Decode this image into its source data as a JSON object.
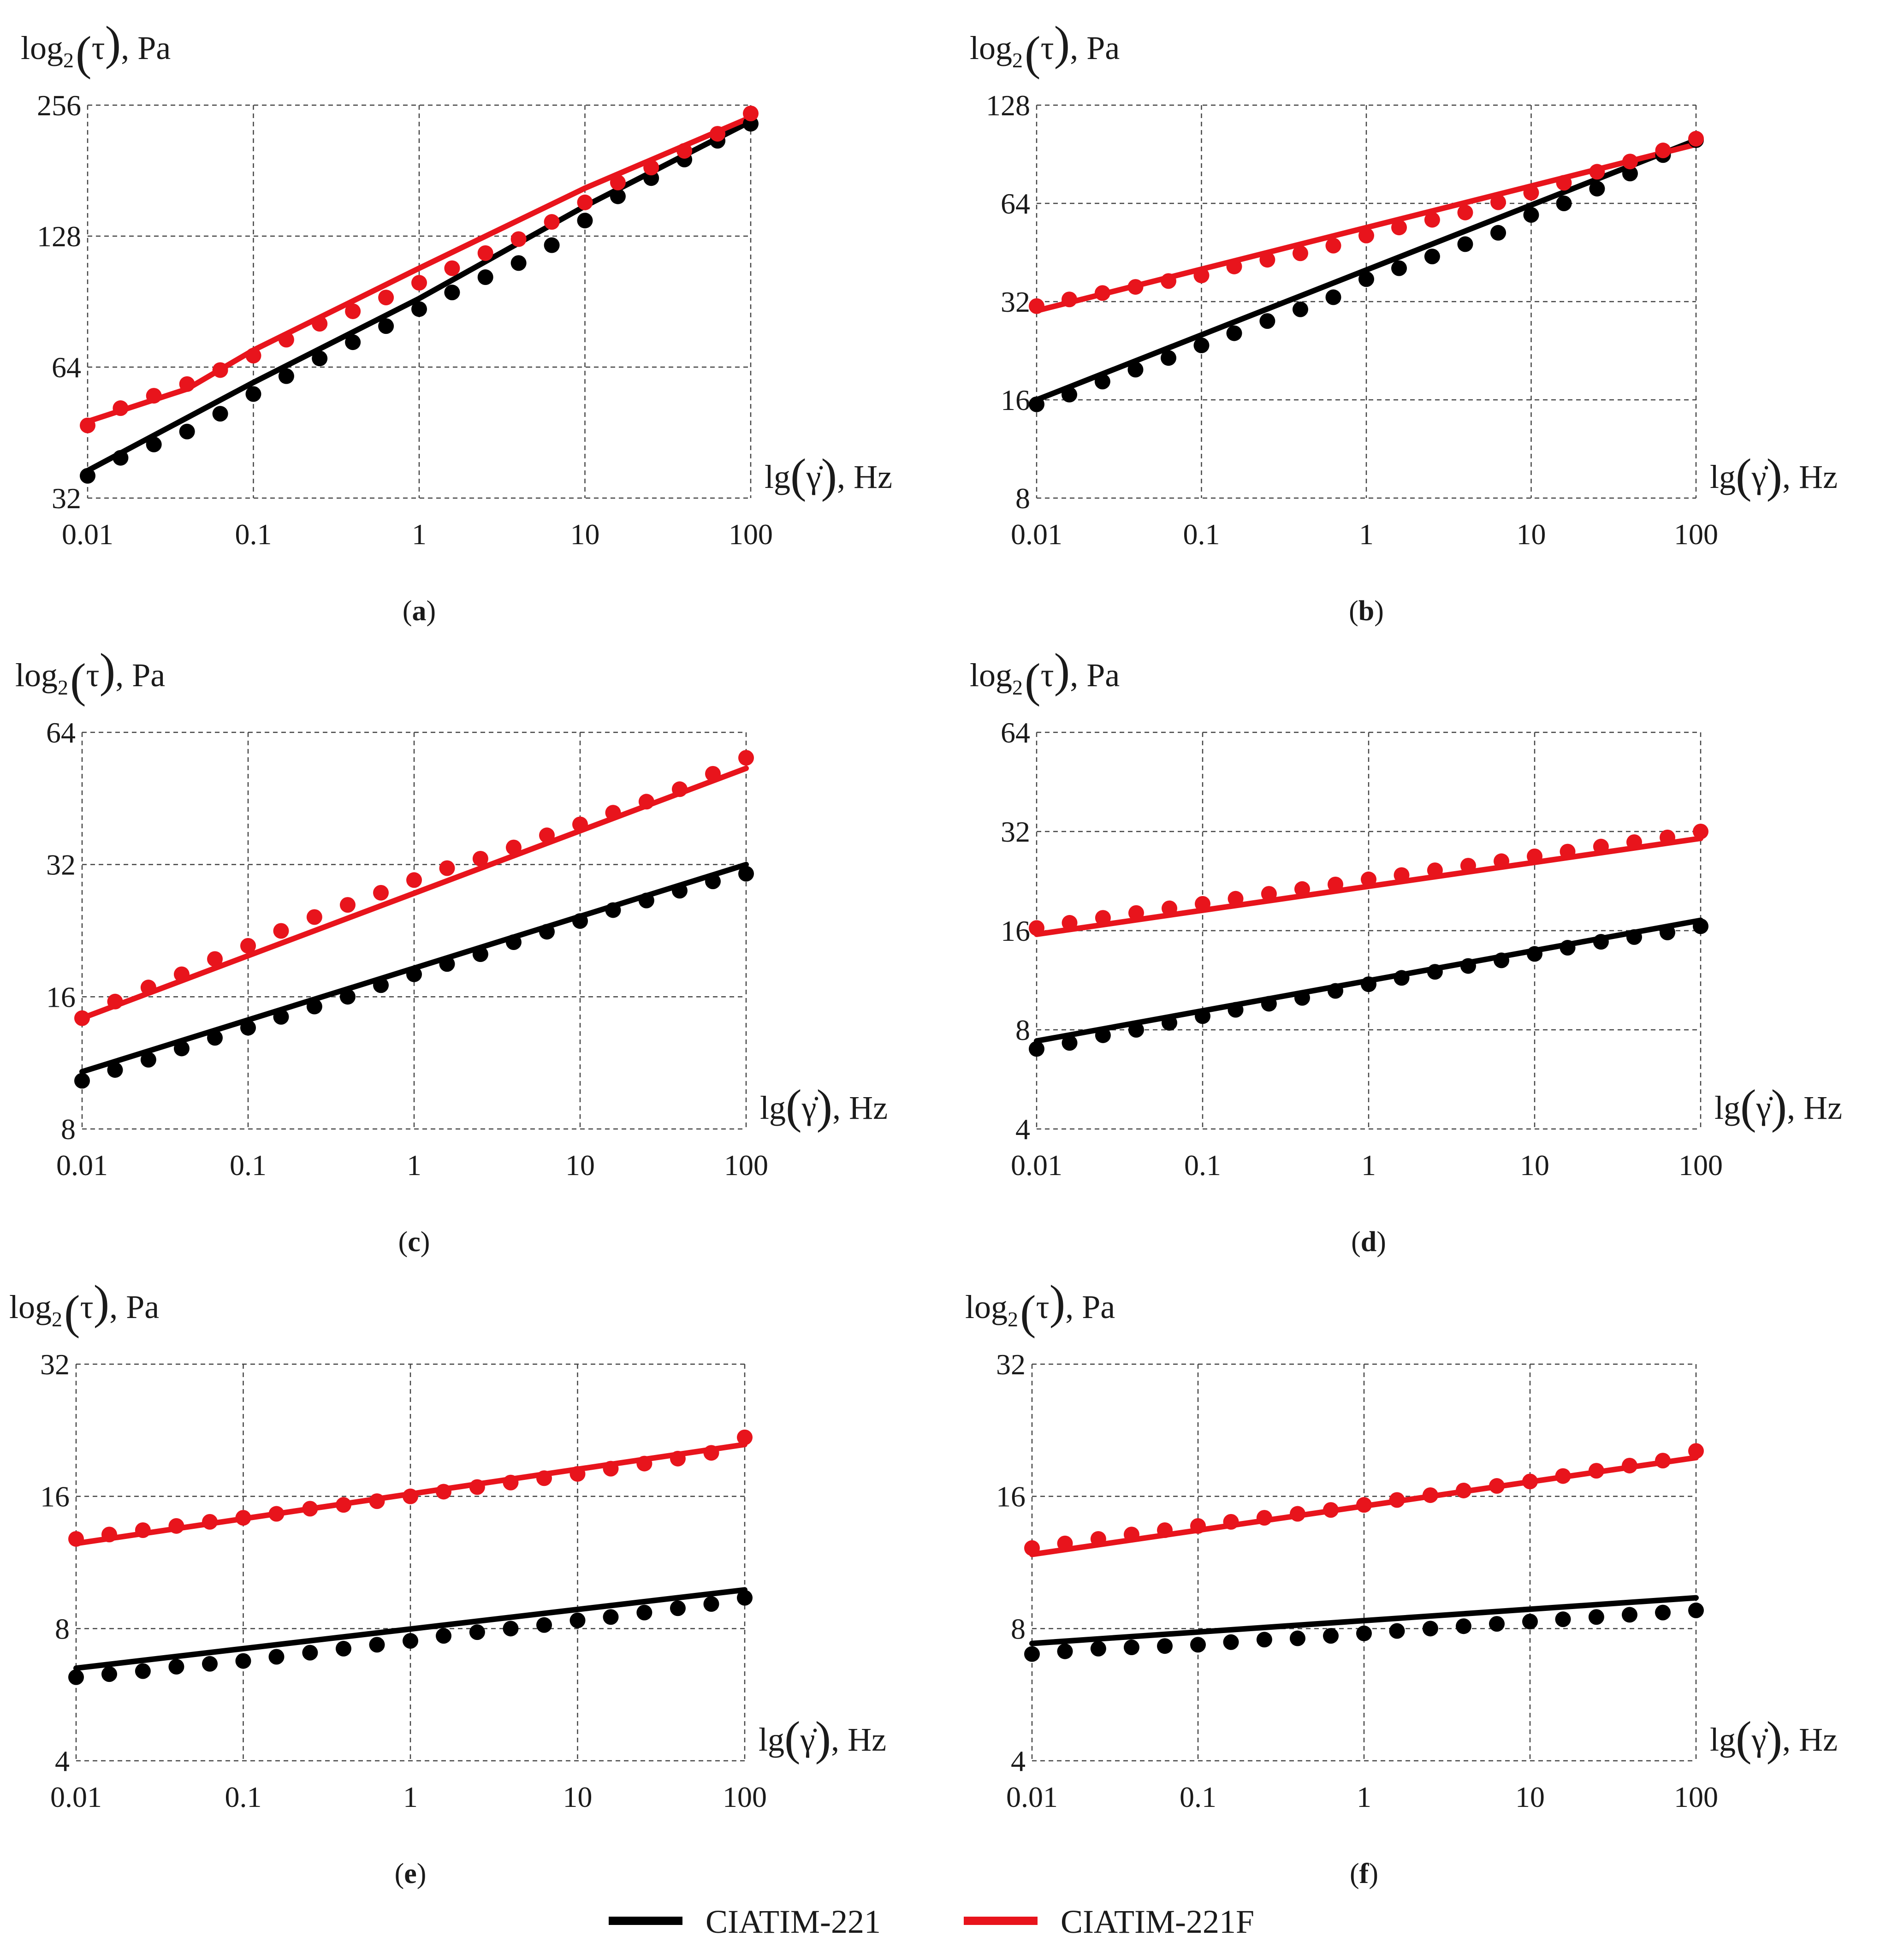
{
  "colors": {
    "series1": "#000000",
    "series2": "#e8141c",
    "grid": "#444444",
    "text": "#1a1a1a"
  },
  "legend": [
    {
      "name": "CIATIM-221",
      "color": "#000000"
    },
    {
      "name": "CIATIM-221F",
      "color": "#e8141c"
    }
  ],
  "chart_data": [
    {
      "type": "line",
      "label": "a",
      "ylabel": {
        "main": "log",
        "sub": "2",
        "arg": "τ",
        "unit": ", Pa"
      },
      "xlabel": {
        "main": "lg",
        "arg": "γ̇",
        "unit": ", Hz"
      },
      "xscale": "log10",
      "yscale": "log2",
      "xlim": [
        0.01,
        100
      ],
      "ylim": [
        32,
        256
      ],
      "xticks": [
        0.01,
        0.1,
        1,
        10,
        100
      ],
      "xticklabels": [
        "0.01",
        "0.1",
        "1",
        "10",
        "100"
      ],
      "yticks": [
        32,
        64,
        128,
        256
      ],
      "yticklabels": [
        "32",
        "64",
        "128",
        "256"
      ],
      "series": [
        {
          "name": "CIATIM-221",
          "color": "#000000",
          "line": {
            "x": [
              0.01,
              0.1,
              1,
              10,
              100
            ],
            "y": [
              37,
              59,
              92,
              150,
              235
            ]
          },
          "points": {
            "x": [
              0.01,
              0.0158,
              0.0251,
              0.0398,
              0.0631,
              0.1,
              0.158,
              0.251,
              0.398,
              0.631,
              1,
              1.58,
              2.51,
              3.98,
              6.31,
              10,
              15.8,
              25.1,
              39.8,
              63.1,
              100
            ],
            "y": [
              36,
              39.6,
              42.5,
              45.5,
              50,
              55.5,
              61,
              67,
              73,
              79.5,
              87,
              95,
              103,
              111,
              122,
              139,
              158,
              174,
              192,
              212,
              232
            ]
          }
        },
        {
          "name": "CIATIM-221F",
          "color": "#e8141c",
          "line": {
            "x": [
              0.01,
              0.0398,
              0.1,
              1,
              10,
              100
            ],
            "y": [
              48,
              57,
              70,
              108,
              165,
              240
            ]
          },
          "points": {
            "x": [
              0.01,
              0.0158,
              0.0251,
              0.0398,
              0.0631,
              0.1,
              0.158,
              0.251,
              0.398,
              0.631,
              1,
              1.58,
              2.51,
              3.98,
              6.31,
              10,
              15.8,
              25.1,
              39.8,
              63.1,
              100
            ],
            "y": [
              47,
              51.5,
              55,
              58.5,
              63,
              68,
              74,
              80.5,
              86,
              92.5,
              100,
              108,
              117,
              126,
              138,
              153,
              170,
              184,
              201,
              220,
              245
            ]
          }
        }
      ]
    },
    {
      "type": "line",
      "label": "b",
      "ylabel": {
        "main": "log",
        "sub": "2",
        "arg": "τ",
        "unit": ", Pa"
      },
      "xlabel": {
        "main": "lg",
        "arg": "γ̇",
        "unit": ", Hz"
      },
      "xscale": "log10",
      "yscale": "log2",
      "xlim": [
        0.01,
        100
      ],
      "ylim": [
        8,
        128
      ],
      "xticks": [
        0.01,
        0.1,
        1,
        10,
        100
      ],
      "xticklabels": [
        "0.01",
        "0.1",
        "1",
        "10",
        "100"
      ],
      "yticks": [
        8,
        16,
        32,
        64,
        128
      ],
      "yticklabels": [
        "8",
        "16",
        "32",
        "64",
        "128"
      ],
      "series": [
        {
          "name": "CIATIM-221",
          "color": "#000000",
          "line": {
            "x": [
              0.01,
              100
            ],
            "y": [
              16,
              100
            ]
          },
          "points": {
            "x": [
              0.01,
              0.0158,
              0.0251,
              0.0398,
              0.0631,
              0.1,
              0.158,
              0.251,
              0.398,
              0.631,
              1,
              1.58,
              2.51,
              3.98,
              6.31,
              10,
              15.8,
              25.1,
              39.8,
              63.1,
              100
            ],
            "y": [
              15.5,
              16.6,
              18.2,
              19.8,
              21.5,
              23.5,
              25.6,
              27.9,
              30.3,
              33,
              37.5,
              40.5,
              44,
              48,
              52,
              59,
              64,
              71,
              79,
              90,
              100
            ]
          }
        },
        {
          "name": "CIATIM-221F",
          "color": "#e8141c",
          "line": {
            "x": [
              0.01,
              100
            ],
            "y": [
              30,
              97
            ]
          },
          "points": {
            "x": [
              0.01,
              0.0158,
              0.0251,
              0.0398,
              0.0631,
              0.1,
              0.158,
              0.251,
              0.398,
              0.631,
              1,
              1.58,
              2.51,
              3.98,
              6.31,
              10,
              15.8,
              25.1,
              39.8,
              63.1,
              100
            ],
            "y": [
              31,
              32.5,
              34,
              35.5,
              37,
              38.5,
              41,
              43,
              45,
              47.5,
              51,
              54,
              57,
              60,
              64.5,
              69,
              74,
              80,
              86,
              93,
              101
            ]
          }
        }
      ]
    },
    {
      "type": "line",
      "label": "c",
      "ylabel": {
        "main": "log",
        "sub": "2",
        "arg": "τ",
        "unit": ", Pa"
      },
      "xlabel": {
        "main": "lg",
        "arg": "γ̇",
        "unit": ", Hz"
      },
      "xscale": "log10",
      "yscale": "log2",
      "xlim": [
        0.01,
        100
      ],
      "ylim": [
        8,
        64
      ],
      "xticks": [
        0.01,
        0.1,
        1,
        10,
        100
      ],
      "xticklabels": [
        "0.01",
        "0.1",
        "1",
        "10",
        "100"
      ],
      "yticks": [
        8,
        16,
        32,
        64
      ],
      "yticklabels": [
        "8",
        "16",
        "32",
        "64"
      ],
      "series": [
        {
          "name": "CIATIM-221",
          "color": "#000000",
          "line": {
            "x": [
              0.01,
              100
            ],
            "y": [
              10.8,
              32
            ]
          },
          "points": {
            "x": [
              0.01,
              0.0158,
              0.0251,
              0.0398,
              0.0631,
              0.1,
              0.158,
              0.251,
              0.398,
              0.631,
              1,
              1.58,
              2.51,
              3.98,
              6.31,
              10,
              15.8,
              25.1,
              39.8,
              63.1,
              100
            ],
            "y": [
              10.3,
              10.9,
              11.5,
              12.2,
              12.9,
              13.6,
              14.4,
              15.2,
              16,
              17,
              18,
              19,
              20,
              21.3,
              22.5,
              23.8,
              25.2,
              26.5,
              27.9,
              29.3,
              30.5
            ]
          }
        },
        {
          "name": "CIATIM-221F",
          "color": "#e8141c",
          "line": {
            "x": [
              0.01,
              100
            ],
            "y": [
              14.3,
              53
            ]
          },
          "points": {
            "x": [
              0.01,
              0.0158,
              0.0251,
              0.0398,
              0.0631,
              0.1,
              0.158,
              0.251,
              0.398,
              0.631,
              1,
              1.58,
              2.51,
              3.98,
              6.31,
              10,
              15.8,
              25.1,
              39.8,
              63.1,
              100
            ],
            "y": [
              14.3,
              15.6,
              16.8,
              18,
              19.5,
              20.9,
              22.6,
              24.3,
              25.9,
              27.6,
              29.5,
              31.4,
              33,
              35,
              37.3,
              39.5,
              42,
              44.5,
              47.5,
              51.5,
              56
            ]
          }
        }
      ]
    },
    {
      "type": "line",
      "label": "d",
      "ylabel": {
        "main": "log",
        "sub": "2",
        "arg": "τ",
        "unit": ", Pa"
      },
      "xlabel": {
        "main": "lg",
        "arg": "γ̇",
        "unit": ", Hz"
      },
      "xscale": "log10",
      "yscale": "log2",
      "xlim": [
        0.01,
        100
      ],
      "ylim": [
        4,
        64
      ],
      "xticks": [
        0.01,
        0.1,
        1,
        10,
        100
      ],
      "xticklabels": [
        "0.01",
        "0.1",
        "1",
        "10",
        "100"
      ],
      "yticks": [
        4,
        8,
        16,
        32,
        64
      ],
      "yticklabels": [
        "4",
        "8",
        "16",
        "32",
        "64"
      ],
      "series": [
        {
          "name": "CIATIM-221",
          "color": "#000000",
          "line": {
            "x": [
              0.01,
              100
            ],
            "y": [
              7.4,
              17.2
            ]
          },
          "points": {
            "x": [
              0.01,
              0.0158,
              0.0251,
              0.0398,
              0.0631,
              0.1,
              0.158,
              0.251,
              0.398,
              0.631,
              1,
              1.58,
              2.51,
              3.98,
              6.31,
              10,
              15.8,
              25.1,
              39.8,
              63.1,
              100
            ],
            "y": [
              7,
              7.3,
              7.7,
              8,
              8.4,
              8.8,
              9.2,
              9.6,
              10,
              10.5,
              11,
              11.5,
              12,
              12.5,
              13,
              13.6,
              14.2,
              14.8,
              15.3,
              15.8,
              16.5
            ]
          }
        },
        {
          "name": "CIATIM-221F",
          "color": "#e8141c",
          "line": {
            "x": [
              0.01,
              100
            ],
            "y": [
              15.6,
              30.5
            ]
          },
          "points": {
            "x": [
              0.01,
              0.0158,
              0.0251,
              0.0398,
              0.0631,
              0.1,
              0.158,
              0.251,
              0.398,
              0.631,
              1,
              1.58,
              2.51,
              3.98,
              6.31,
              10,
              15.8,
              25.1,
              39.8,
              63.1,
              100
            ],
            "y": [
              16.3,
              16.9,
              17.5,
              18.1,
              18.7,
              19.3,
              20,
              20.7,
              21.4,
              22.1,
              22.9,
              23.6,
              24.4,
              25.2,
              26,
              26.9,
              27.8,
              28.8,
              29.7,
              30.7,
              32
            ]
          }
        }
      ]
    },
    {
      "type": "line",
      "label": "e",
      "ylabel": {
        "main": "log",
        "sub": "2",
        "arg": "τ",
        "unit": ", Pa"
      },
      "xlabel": {
        "main": "lg",
        "arg": "γ̇",
        "unit": ", Hz"
      },
      "xscale": "log10",
      "yscale": "log2",
      "xlim": [
        0.01,
        100
      ],
      "ylim": [
        4,
        32
      ],
      "xticks": [
        0.01,
        0.1,
        1,
        10,
        100
      ],
      "xticklabels": [
        "0.01",
        "0.1",
        "1",
        "10",
        "100"
      ],
      "yticks": [
        4,
        8,
        16,
        32
      ],
      "yticklabels": [
        "4",
        "8",
        "16",
        "32"
      ],
      "series": [
        {
          "name": "CIATIM-221",
          "color": "#000000",
          "line": {
            "x": [
              0.01,
              100
            ],
            "y": [
              6.5,
              9.8
            ]
          },
          "points": {
            "x": [
              0.01,
              0.0158,
              0.0251,
              0.0398,
              0.0631,
              0.1,
              0.158,
              0.251,
              0.398,
              0.631,
              1,
              1.58,
              2.51,
              3.98,
              6.31,
              10,
              15.8,
              25.1,
              39.8,
              63.1,
              100
            ],
            "y": [
              6.2,
              6.3,
              6.4,
              6.55,
              6.65,
              6.75,
              6.9,
              7.05,
              7.2,
              7.35,
              7.5,
              7.7,
              7.85,
              8.0,
              8.15,
              8.35,
              8.5,
              8.7,
              8.9,
              9.1,
              9.4
            ]
          }
        },
        {
          "name": "CIATIM-221F",
          "color": "#e8141c",
          "line": {
            "x": [
              0.01,
              100
            ],
            "y": [
              12.5,
              21
            ]
          },
          "points": {
            "x": [
              0.01,
              0.0158,
              0.0251,
              0.0398,
              0.0631,
              0.1,
              0.158,
              0.251,
              0.398,
              0.631,
              1,
              1.58,
              2.51,
              3.98,
              6.31,
              10,
              15.8,
              25.1,
              39.8,
              63.1,
              100
            ],
            "y": [
              12.8,
              13.1,
              13.4,
              13.7,
              14,
              14.3,
              14.6,
              15,
              15.3,
              15.6,
              16,
              16.4,
              16.8,
              17.2,
              17.6,
              18,
              18.5,
              19,
              19.5,
              20.1,
              21.8
            ]
          }
        }
      ]
    },
    {
      "type": "line",
      "label": "f",
      "ylabel": {
        "main": "log",
        "sub": "2",
        "arg": "τ",
        "unit": ", Pa"
      },
      "xlabel": {
        "main": "lg",
        "arg": "γ̇",
        "unit": ", Hz"
      },
      "xscale": "log10",
      "yscale": "log2",
      "xlim": [
        0.01,
        100
      ],
      "ylim": [
        4,
        32
      ],
      "xticks": [
        0.01,
        0.1,
        1,
        10,
        100
      ],
      "xticklabels": [
        "0.01",
        "0.1",
        "1",
        "10",
        "100"
      ],
      "yticks": [
        4,
        8,
        16,
        32
      ],
      "yticklabels": [
        "4",
        "8",
        "16",
        "32"
      ],
      "series": [
        {
          "name": "CIATIM-221",
          "color": "#000000",
          "line": {
            "x": [
              0.01,
              100
            ],
            "y": [
              7.4,
              9.4
            ]
          },
          "points": {
            "x": [
              0.01,
              0.0158,
              0.0251,
              0.0398,
              0.0631,
              0.1,
              0.158,
              0.251,
              0.398,
              0.631,
              1,
              1.58,
              2.51,
              3.98,
              6.31,
              10,
              15.8,
              25.1,
              39.8,
              63.1,
              100
            ],
            "y": [
              7.0,
              7.1,
              7.2,
              7.25,
              7.3,
              7.35,
              7.45,
              7.55,
              7.6,
              7.7,
              7.8,
              7.9,
              8.0,
              8.1,
              8.2,
              8.3,
              8.4,
              8.5,
              8.6,
              8.7,
              8.8
            ]
          }
        },
        {
          "name": "CIATIM-221F",
          "color": "#e8141c",
          "line": {
            "x": [
              0.01,
              100
            ],
            "y": [
              11.8,
              19.6
            ]
          },
          "points": {
            "x": [
              0.01,
              0.0158,
              0.0251,
              0.0398,
              0.0631,
              0.1,
              0.158,
              0.251,
              0.398,
              0.631,
              1,
              1.58,
              2.51,
              3.98,
              6.31,
              10,
              15.8,
              25.1,
              39.8,
              63.1,
              100
            ],
            "y": [
              12.2,
              12.5,
              12.8,
              13.1,
              13.4,
              13.7,
              14,
              14.3,
              14.6,
              14.9,
              15.3,
              15.7,
              16.1,
              16.5,
              16.9,
              17.3,
              17.8,
              18.3,
              18.8,
              19.3,
              20.3
            ]
          }
        }
      ]
    }
  ]
}
